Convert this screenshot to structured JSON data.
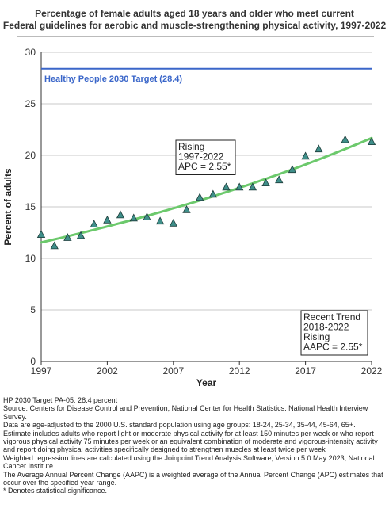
{
  "chart_data": {
    "type": "scatter",
    "title_line1": "Percentage of female adults aged 18 years and older who meet current",
    "title_line2": "Federal guidelines for aerobic and muscle-strengthening physical activity, 1997-2022",
    "xlabel": "Year",
    "ylabel": "Percent of adults",
    "xlim": [
      1997,
      2022
    ],
    "ylim": [
      0,
      30
    ],
    "x_ticks": [
      "1997",
      "2002",
      "2007",
      "2012",
      "2017",
      "2022"
    ],
    "y_ticks": [
      "0",
      "5",
      "10",
      "15",
      "20",
      "25",
      "30"
    ],
    "grid": "horizontal",
    "target": {
      "label": "Healthy People 2030 Target (28.4)",
      "value": 28.4,
      "color": "#3a66c9"
    },
    "series": [
      {
        "marker": "triangle",
        "color": "#3f8f8a",
        "x": [
          1997,
          1998,
          1999,
          2000,
          2001,
          2002,
          2003,
          2004,
          2005,
          2006,
          2007,
          2008,
          2009,
          2010,
          2011,
          2012,
          2013,
          2014,
          2015,
          2016,
          2017,
          2018,
          2020,
          2022
        ],
        "y": [
          12.3,
          11.2,
          12.0,
          12.2,
          13.3,
          13.7,
          14.2,
          13.9,
          14.0,
          13.6,
          13.4,
          14.7,
          15.9,
          16.2,
          16.9,
          16.9,
          16.9,
          17.3,
          17.6,
          18.6,
          19.9,
          20.6,
          21.5,
          21.3
        ]
      },
      {
        "type": "trend-line",
        "color": "#6cc96c",
        "x": [
          1997,
          2022
        ],
        "y": [
          11.55,
          21.9
        ],
        "apc": 2.55
      }
    ],
    "annotations": [
      {
        "lines": [
          "Rising",
          "1997-2022",
          "APC =  2.55*"
        ]
      },
      {
        "lines": [
          "Recent Trend",
          "2018-2022",
          "Rising",
          "AAPC =  2.55*"
        ]
      }
    ]
  },
  "notes": [
    "HP 2030 Target PA-05: 28.4 percent",
    "Source: Centers for Disease Control and Prevention, National Center for Health Statistics. National Health Interview Survey.",
    "Data are age-adjusted to the 2000 U.S. standard population using age groups: 18-24, 25-34, 35-44, 45-64, 65+.",
    "Estimate includes adults who report light or moderate physical activity for at least 150 minutes per week or who report vigorous physical activity 75 minutes per week or an equivalent combination of moderate and vigorous-intensity activity and report doing physical activities specifically designed to strengthen muscles at least twice per week",
    "Weighted regression lines are calculated using the Joinpoint Trend Analysis Software, Version 5.0 May 2023, National Cancer Institute.",
    "The Average Annual Percent Change (AAPC) is a weighted average of the Annual Percent Change (APC) estimates that occur over the specified year range.",
    "* Denotes statistical significance."
  ]
}
